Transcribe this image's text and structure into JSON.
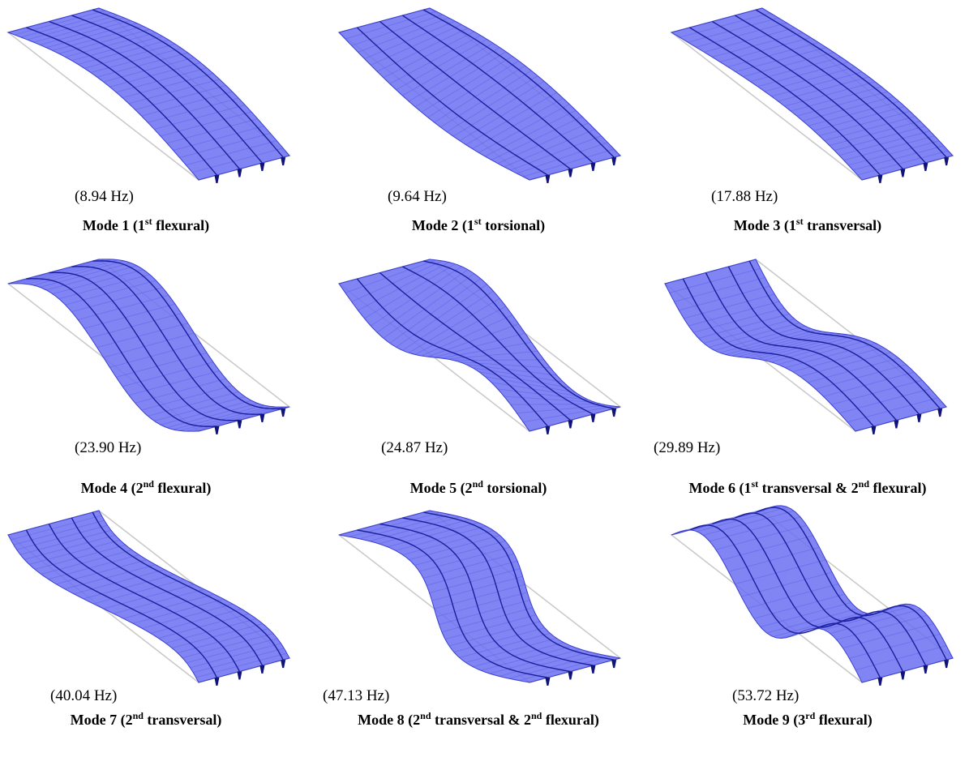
{
  "modes": [
    {
      "frequency": "(8.94 Hz)",
      "label": [
        {
          "text": "Mode 1 (1"
        },
        {
          "sup": "st"
        },
        {
          "text": " flexural)"
        }
      ]
    },
    {
      "frequency": "(9.64 Hz)",
      "label": [
        {
          "text": "Mode 2 (1"
        },
        {
          "sup": "st"
        },
        {
          "text": " torsional)"
        }
      ]
    },
    {
      "frequency": "(17.88 Hz)",
      "label": [
        {
          "text": "Mode 3 (1"
        },
        {
          "sup": "st"
        },
        {
          "text": " transversal)"
        }
      ]
    },
    {
      "frequency": "(23.90 Hz)",
      "label": [
        {
          "text": "Mode 4 (2"
        },
        {
          "sup": "nd"
        },
        {
          "text": " flexural)"
        }
      ]
    },
    {
      "frequency": "(24.87 Hz)",
      "label": [
        {
          "text": "Mode 5 (2"
        },
        {
          "sup": "nd"
        },
        {
          "text": " torsional)"
        }
      ]
    },
    {
      "frequency": "(29.89 Hz)",
      "label": [
        {
          "text": "Mode 6 (1"
        },
        {
          "sup": "st"
        },
        {
          "text": " transversal & 2"
        },
        {
          "sup": "nd"
        },
        {
          "text": " flexural)"
        }
      ]
    },
    {
      "frequency": "(40.04 Hz)",
      "label": [
        {
          "text": "Mode 7 (2"
        },
        {
          "sup": "nd"
        },
        {
          "text": " transversal)"
        }
      ]
    },
    {
      "frequency": "(47.13 Hz)",
      "label": [
        {
          "text": "Mode 8 (2"
        },
        {
          "sup": "nd"
        },
        {
          "text": " transversal & 2"
        },
        {
          "sup": "nd"
        },
        {
          "text": " flexural)"
        }
      ]
    },
    {
      "frequency": "(53.72 Hz)",
      "label": [
        {
          "text": "Mode 9 (3"
        },
        {
          "sup": "rd"
        },
        {
          "text": " flexural)"
        }
      ]
    }
  ]
}
